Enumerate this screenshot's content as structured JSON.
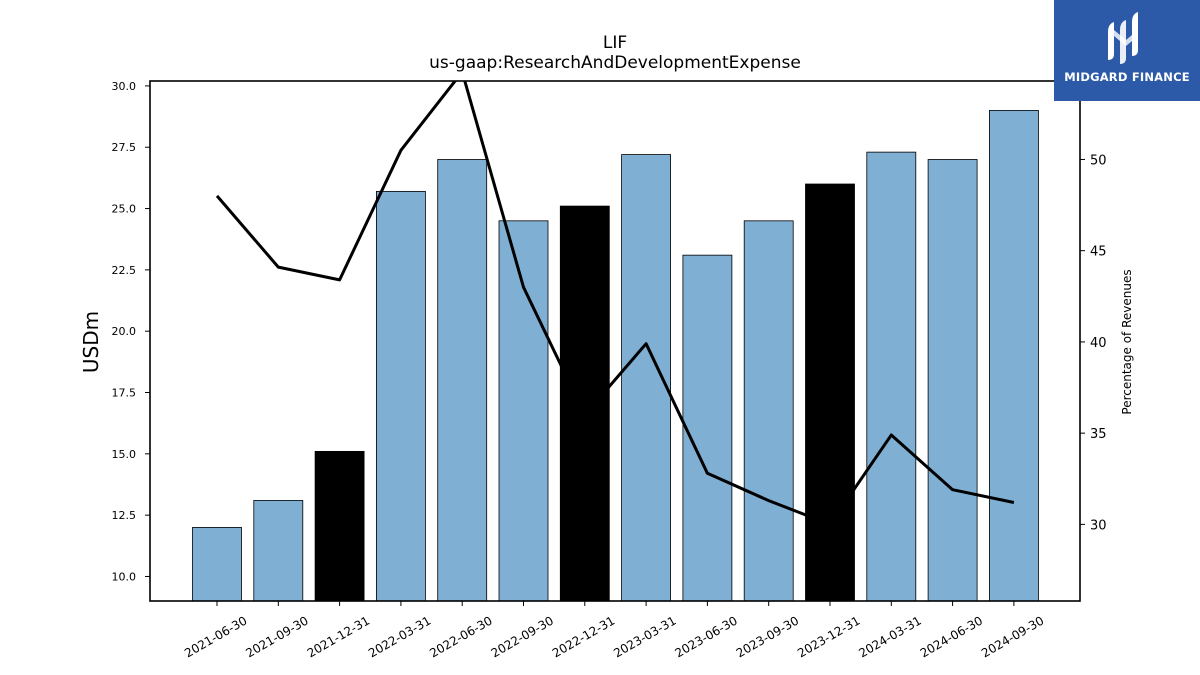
{
  "logo": {
    "text": "MIDGARD FINANCE",
    "icon": "midgard-finance-logo-icon",
    "background": "#2c5aa9"
  },
  "chart_data": {
    "type": "bar",
    "title": "LIF",
    "subtitle": "us-gaap:ResearchAndDevelopmentExpense",
    "ylabel": "USDm",
    "y2label": "Percentage of Revenues",
    "ylim": [
      9.0,
      30.2
    ],
    "y2lim": [
      25.8,
      54.3
    ],
    "yticks": [
      "10.0",
      "12.5",
      "15.0",
      "17.5",
      "20.0",
      "22.5",
      "25.0",
      "27.5",
      "30.0"
    ],
    "y2ticks": [
      "30",
      "35",
      "40",
      "45",
      "50"
    ],
    "categories": [
      "2021-06-30",
      "2021-09-30",
      "2021-12-31",
      "2022-03-31",
      "2022-06-30",
      "2022-09-30",
      "2022-12-31",
      "2023-03-31",
      "2023-06-30",
      "2023-09-30",
      "2023-12-31",
      "2024-03-31",
      "2024-06-30",
      "2024-09-30"
    ],
    "series": [
      {
        "type": "bar",
        "axis": "left",
        "values": [
          12.0,
          13.1,
          15.1,
          25.7,
          27.0,
          24.5,
          25.1,
          27.2,
          23.1,
          24.5,
          26.0,
          27.3,
          27.0,
          29.0
        ],
        "colors": [
          "#7fb0d4",
          "#7fb0d4",
          "#000000",
          "#7fb0d4",
          "#7fb0d4",
          "#7fb0d4",
          "#000000",
          "#7fb0d4",
          "#7fb0d4",
          "#7fb0d4",
          "#000000",
          "#7fb0d4",
          "#7fb0d4",
          "#7fb0d4"
        ]
      },
      {
        "type": "line",
        "axis": "right",
        "color": "#000000",
        "values": [
          48.0,
          44.1,
          43.4,
          50.5,
          54.8,
          43.0,
          36.0,
          39.9,
          32.8,
          31.3,
          30.0,
          34.9,
          31.9,
          31.2
        ]
      }
    ],
    "grid": false,
    "legend": "none"
  }
}
